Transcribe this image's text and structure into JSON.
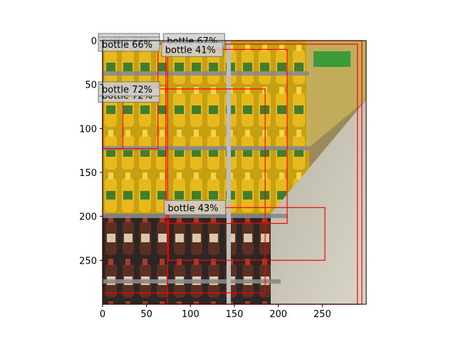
{
  "chart_data": {
    "type": "image-with-detections",
    "xlim": [
      0,
      300
    ],
    "ylim": [
      300,
      0
    ],
    "x_ticks": [
      0,
      50,
      100,
      150,
      200,
      250
    ],
    "y_ticks": [
      0,
      50,
      100,
      150,
      200,
      250
    ],
    "box_color": "#ff0000",
    "detections": [
      {
        "label": "bottle 72%",
        "x0": 0,
        "y0": 0,
        "x1": 63,
        "y1": 123
      },
      {
        "label": "bottle 67%",
        "x0": 74,
        "y0": 0,
        "x1": 295,
        "y1": 300
      },
      {
        "label": "bottle 66%",
        "x0": 0,
        "y0": 4,
        "x1": 290,
        "y1": 300
      },
      {
        "label": "bottle 41%",
        "x0": 72,
        "y0": 10,
        "x1": 210,
        "y1": 208
      },
      {
        "label": "bottle 72%",
        "x0": 0,
        "y0": 62,
        "x1": 23,
        "y1": 123
      },
      {
        "label": "bottle 72%",
        "x0": 0,
        "y0": 55,
        "x1": 185,
        "y1": 287
      },
      {
        "label": "bottle 43%",
        "x0": 75,
        "y0": 190,
        "x1": 253,
        "y1": 250
      }
    ]
  }
}
